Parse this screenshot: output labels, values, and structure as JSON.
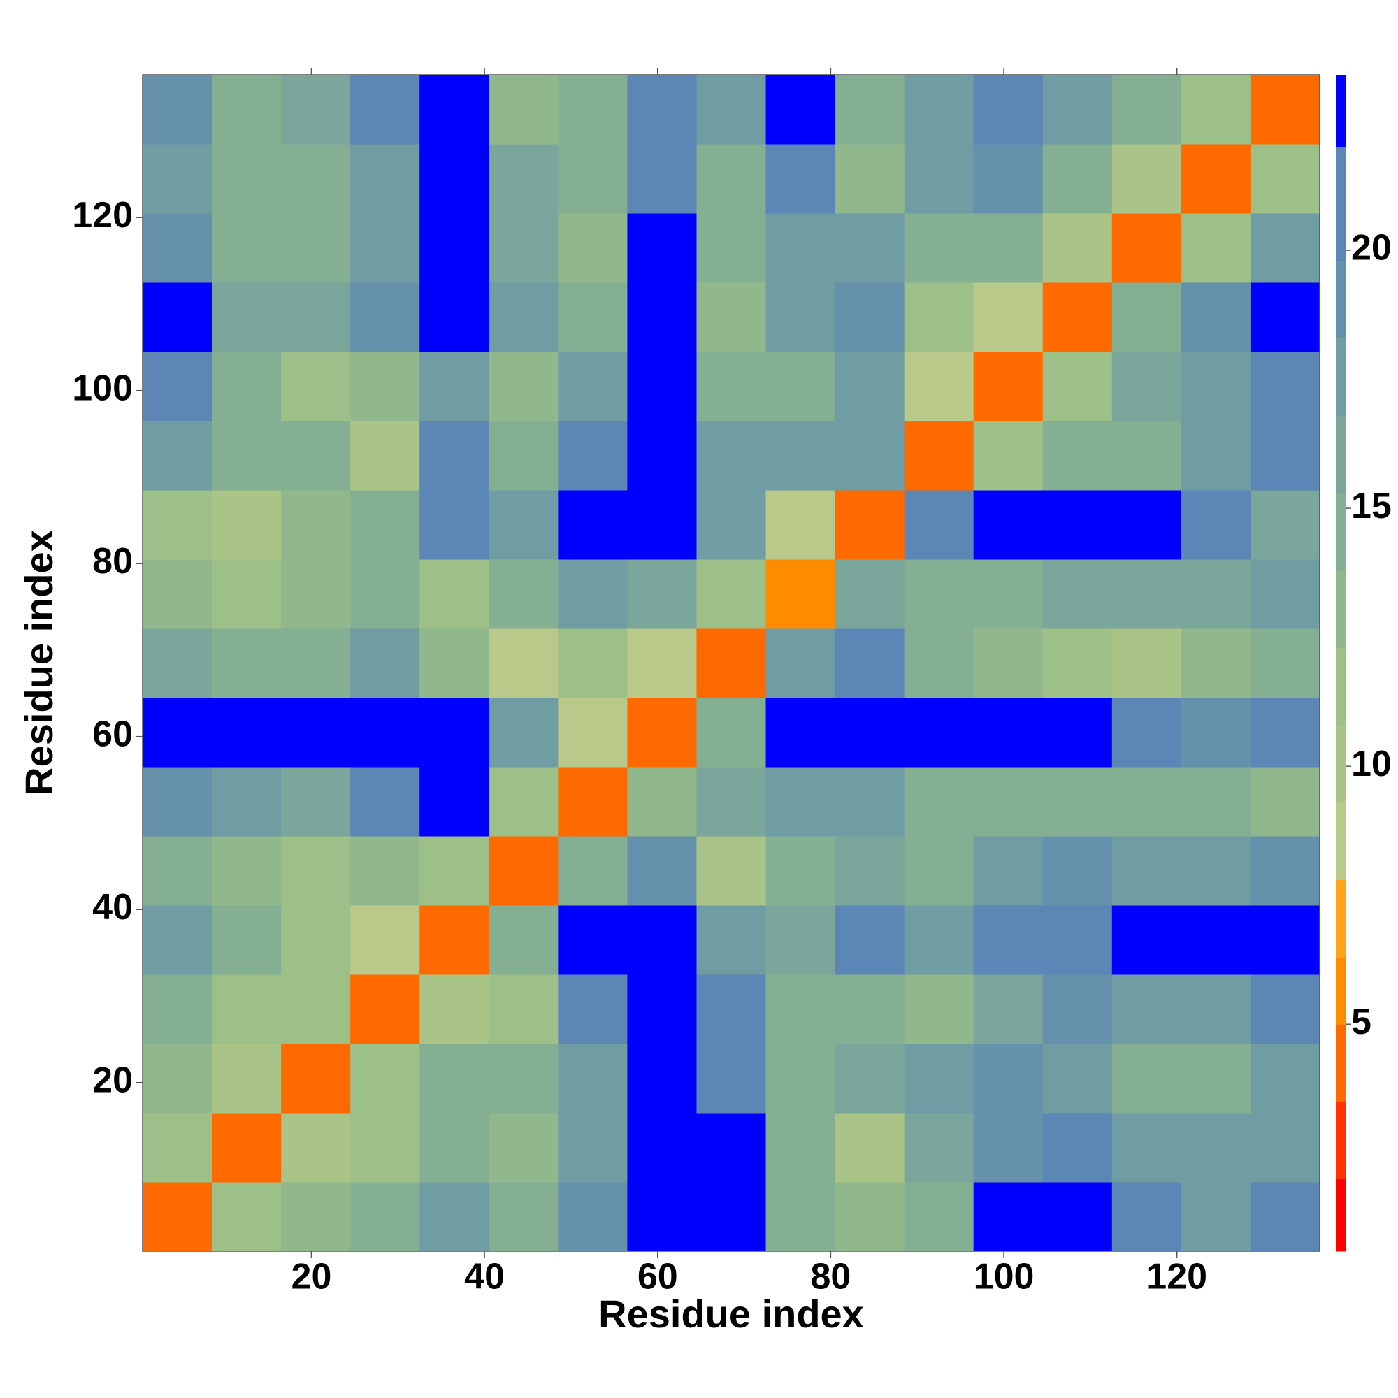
{
  "chart_data": {
    "type": "heatmap",
    "xlabel": "Residue index",
    "ylabel": "Residue index",
    "xlim": [
      0.5,
      136.5
    ],
    "ylim": [
      0.5,
      136.5
    ],
    "xticks": [
      20,
      40,
      60,
      80,
      100,
      120
    ],
    "yticks": [
      20,
      40,
      60,
      80,
      100,
      120
    ],
    "x": [
      4.5,
      12.5,
      20.5,
      28.5,
      36.5,
      44.5,
      52.5,
      60.5,
      68.5,
      76.5,
      84.5,
      92.5,
      100.5,
      108.5,
      116.5,
      124.5,
      132.5
    ],
    "y": [
      4.5,
      12.5,
      20.5,
      28.5,
      36.5,
      44.5,
      52.5,
      60.5,
      68.5,
      76.5,
      84.5,
      92.5,
      100.5,
      108.5,
      116.5,
      124.5,
      132.5
    ],
    "values": [
      [
        4,
        12,
        13,
        15,
        18,
        14,
        19,
        23,
        23,
        15,
        13,
        15,
        23,
        23,
        20,
        17,
        21
      ],
      [
        12,
        4,
        10,
        12,
        15,
        13,
        17,
        23,
        23,
        14,
        10,
        16,
        19,
        20,
        17,
        18,
        18
      ],
      [
        13,
        10,
        4,
        11,
        14,
        14,
        18,
        23,
        22,
        15,
        16,
        17,
        19,
        18,
        15,
        14,
        17
      ],
      [
        15,
        12,
        11,
        4,
        10,
        11,
        20,
        23,
        20,
        15,
        14,
        13,
        16,
        19,
        18,
        18,
        20
      ],
      [
        18,
        15,
        12,
        9,
        4,
        15,
        23,
        23,
        17,
        16,
        20,
        17,
        21,
        22,
        23,
        23,
        23
      ],
      [
        14,
        13,
        11,
        13,
        12,
        4,
        14,
        19,
        10,
        14,
        16,
        14,
        17,
        19,
        17,
        18,
        19
      ],
      [
        19,
        17,
        16,
        20,
        23,
        12,
        4,
        13,
        16,
        17,
        18,
        14,
        14,
        14,
        14,
        14,
        13
      ],
      [
        23,
        23,
        23,
        23,
        23,
        18,
        9,
        4,
        15,
        23,
        23,
        23,
        23,
        23,
        21,
        19,
        20
      ],
      [
        16,
        15,
        15,
        17,
        13,
        9,
        12,
        8,
        4,
        17,
        20,
        15,
        13,
        12,
        10,
        13,
        15
      ],
      [
        13,
        12,
        13,
        14,
        12,
        15,
        18,
        16,
        12,
        6,
        16,
        15,
        15,
        16,
        16,
        16,
        17
      ],
      [
        12,
        10,
        13,
        15,
        20,
        17,
        23,
        23,
        17,
        9,
        4,
        20,
        23,
        23,
        23,
        21,
        16
      ],
      [
        17,
        14,
        15,
        10,
        20,
        14,
        20,
        23,
        17,
        17,
        17,
        5,
        12,
        14,
        15,
        17,
        20
      ],
      [
        20,
        15,
        12,
        13,
        17,
        13,
        17,
        23,
        15,
        14,
        18,
        9,
        4,
        11,
        16,
        17,
        21
      ],
      [
        23,
        16,
        16,
        19,
        23,
        17,
        14,
        23,
        13,
        17,
        19,
        12,
        9,
        4,
        14,
        19,
        23
      ],
      [
        19,
        15,
        15,
        17,
        23,
        16,
        13,
        23,
        14,
        17,
        17,
        14,
        14,
        10,
        4,
        12,
        18
      ],
      [
        17,
        15,
        14,
        17,
        23,
        16,
        14,
        22,
        15,
        21,
        13,
        17,
        19,
        14,
        10,
        4,
        12
      ],
      [
        19,
        15,
        16,
        20,
        23,
        13,
        15,
        21,
        17,
        23,
        15,
        17,
        20,
        18,
        15,
        11,
        4
      ]
    ],
    "colorbar": {
      "levels": [
        0.6,
        2,
        3.5,
        5,
        6.3,
        7.8,
        9.3,
        10.8,
        12.3,
        13.8,
        15.3,
        16.8,
        18.3,
        19.8,
        22,
        23.4
      ],
      "colors": [
        "#ff0000",
        "#ff3300",
        "#ff6a00",
        "#ff8c00",
        "#ffa31a",
        "#b9c98a",
        "#a9c486",
        "#9dbf88",
        "#90b88c",
        "#85af93",
        "#7ba69b",
        "#709ca4",
        "#6691ad",
        "#5c86b5",
        "#0000ff"
      ],
      "ticks": [
        5,
        10,
        15,
        20
      ]
    }
  }
}
